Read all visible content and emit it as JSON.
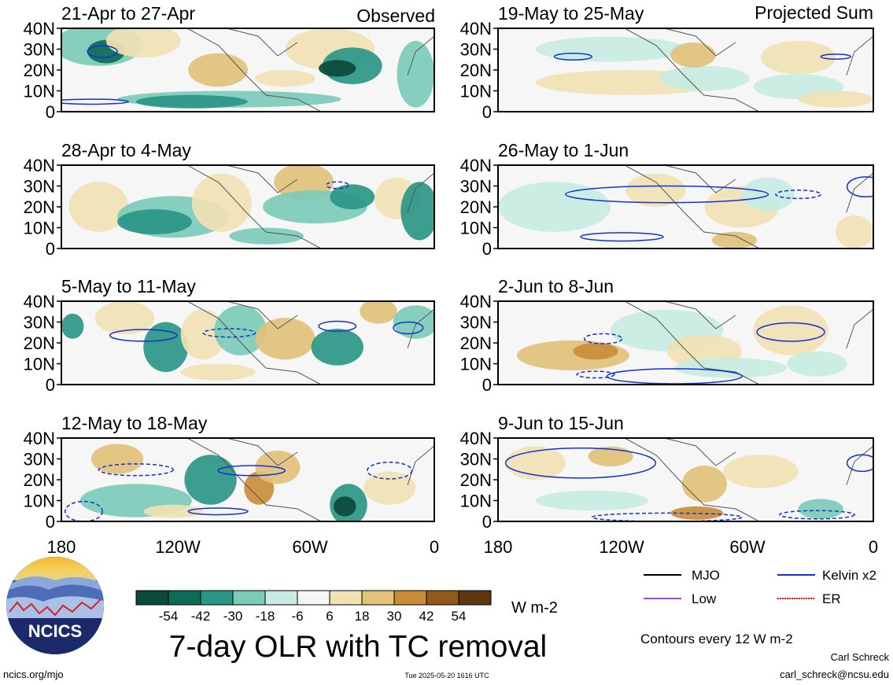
{
  "observed_label": "Observed",
  "projected_label": "Projected Sum",
  "panels_left": [
    {
      "period": "21-Apr to 27-Apr"
    },
    {
      "period": "28-Apr to 4-May"
    },
    {
      "period": "5-May to 11-May"
    },
    {
      "period": "12-May to 18-May"
    }
  ],
  "panels_right": [
    {
      "period": "19-May to 25-May"
    },
    {
      "period": "26-May to 1-Jun"
    },
    {
      "period": "2-Jun to 8-Jun"
    },
    {
      "period": "9-Jun to 15-Jun"
    }
  ],
  "lat_labels": [
    "40N",
    "30N",
    "20N",
    "10N",
    "0"
  ],
  "lon_labels": [
    "180",
    "120W",
    "60W",
    "0"
  ],
  "colorbar": {
    "colors": [
      "#0b4a3c",
      "#0e6b58",
      "#2a9686",
      "#7ccbb9",
      "#c7ebe2",
      "#f6f6f6",
      "#f1e2b4",
      "#e2c179",
      "#c98d3a",
      "#93591a",
      "#5e3610"
    ],
    "labels": [
      "-54",
      "-42",
      "-30",
      "-18",
      "-6",
      "6",
      "18",
      "30",
      "42",
      "54"
    ],
    "unit": "W m-2"
  },
  "legend": {
    "items": [
      {
        "label": "MJO",
        "color": "#000000"
      },
      {
        "label": "Kelvin x2",
        "color": "#1432d0"
      },
      {
        "label": "Low",
        "color": "#9a50d8"
      },
      {
        "label": "ER",
        "color": "#e01010"
      }
    ],
    "contours_note": "Contours every 12 W m-2"
  },
  "title": "7-day OLR with TC removal",
  "logo_text": "NCICS",
  "footer": {
    "url": "ncics.org/mjo",
    "timestamp": "Tue 2025-05-20 1616 UTC",
    "author": "Carl Schreck",
    "email": "carl_schreck@ncsu.edu"
  }
}
